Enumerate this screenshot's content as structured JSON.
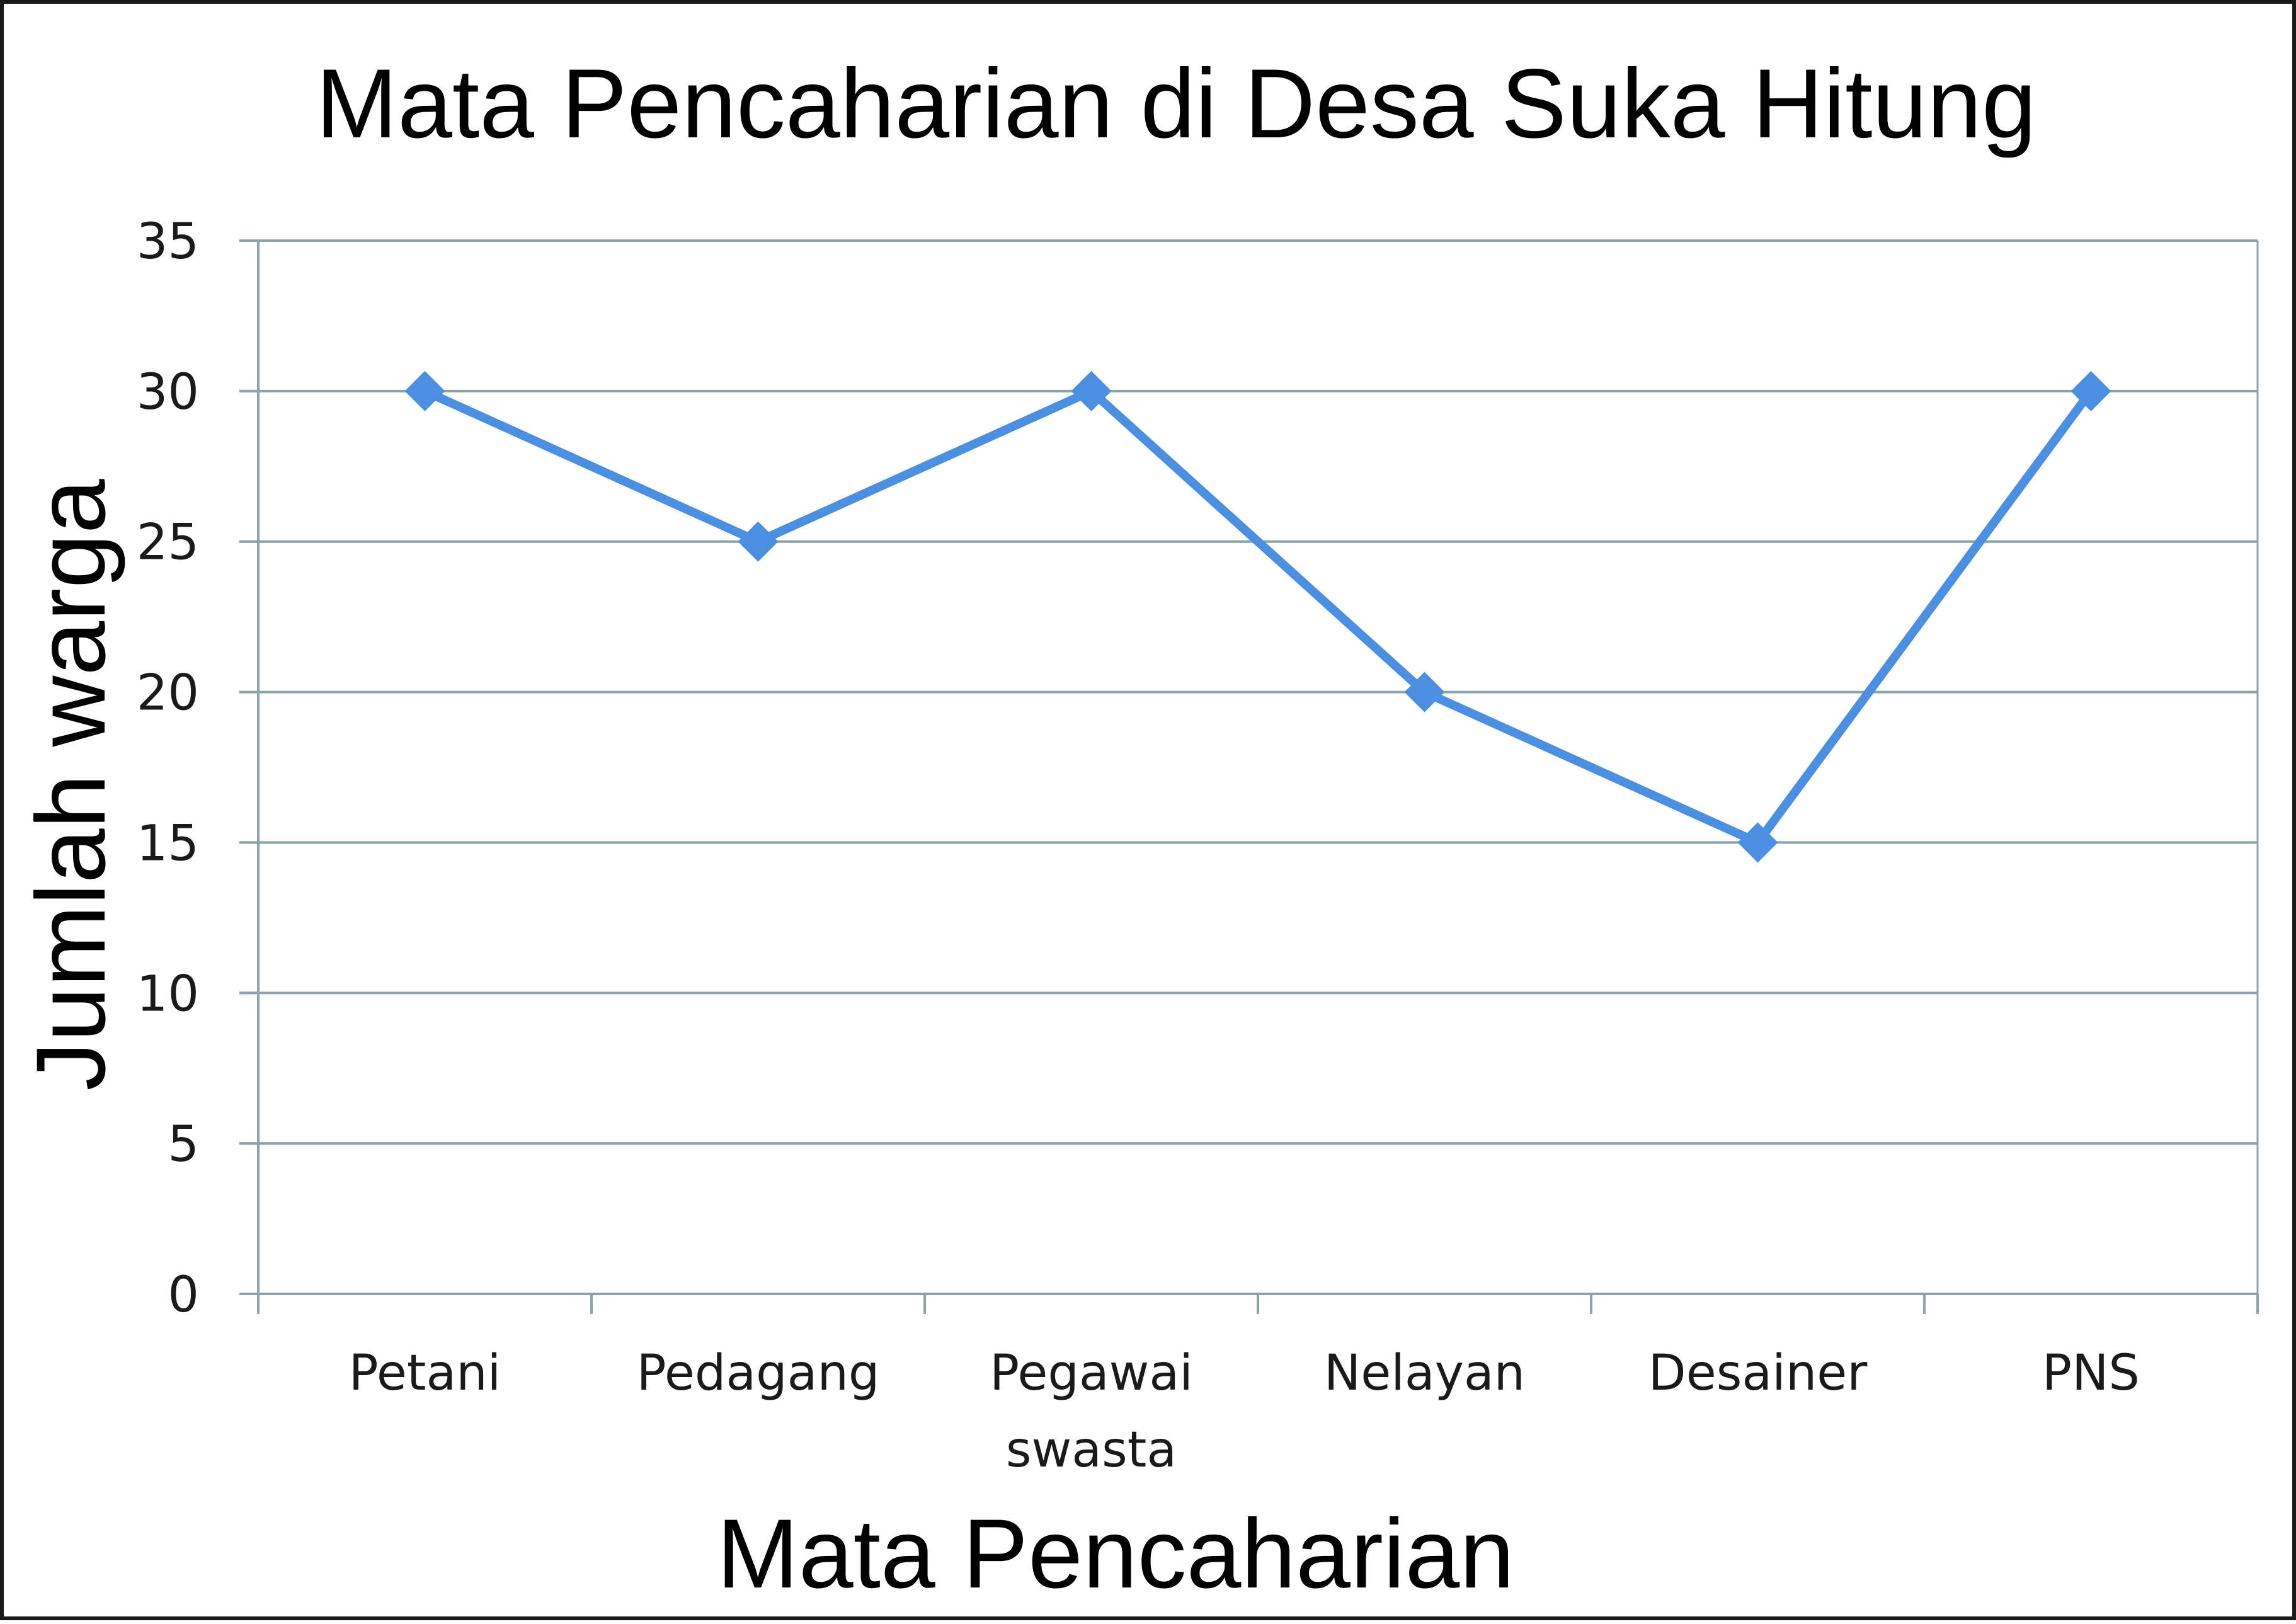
{
  "chart_data": {
    "type": "line",
    "title": "Mata Pencaharian di Desa Suka Hitung",
    "xlabel": "Mata Pencaharian",
    "ylabel": "Jumlah warga",
    "categories": [
      [
        "Petani"
      ],
      [
        "Pedagang"
      ],
      [
        "Pegawai",
        "swasta"
      ],
      [
        "Nelayan"
      ],
      [
        "Desainer"
      ],
      [
        "PNS"
      ]
    ],
    "series": [
      {
        "values": [
          30,
          25,
          30,
          20,
          15,
          30
        ]
      }
    ],
    "ylim": [
      0,
      35
    ],
    "yticks": [
      0,
      5,
      10,
      15,
      20,
      25,
      30,
      35
    ],
    "grid": true,
    "legend": "none",
    "colors": {
      "line": "#4a8fe0",
      "marker": "#4a8fe0",
      "grid": "#8aa4a8",
      "axis": "#8aa4a8"
    },
    "marker": "diamond"
  }
}
